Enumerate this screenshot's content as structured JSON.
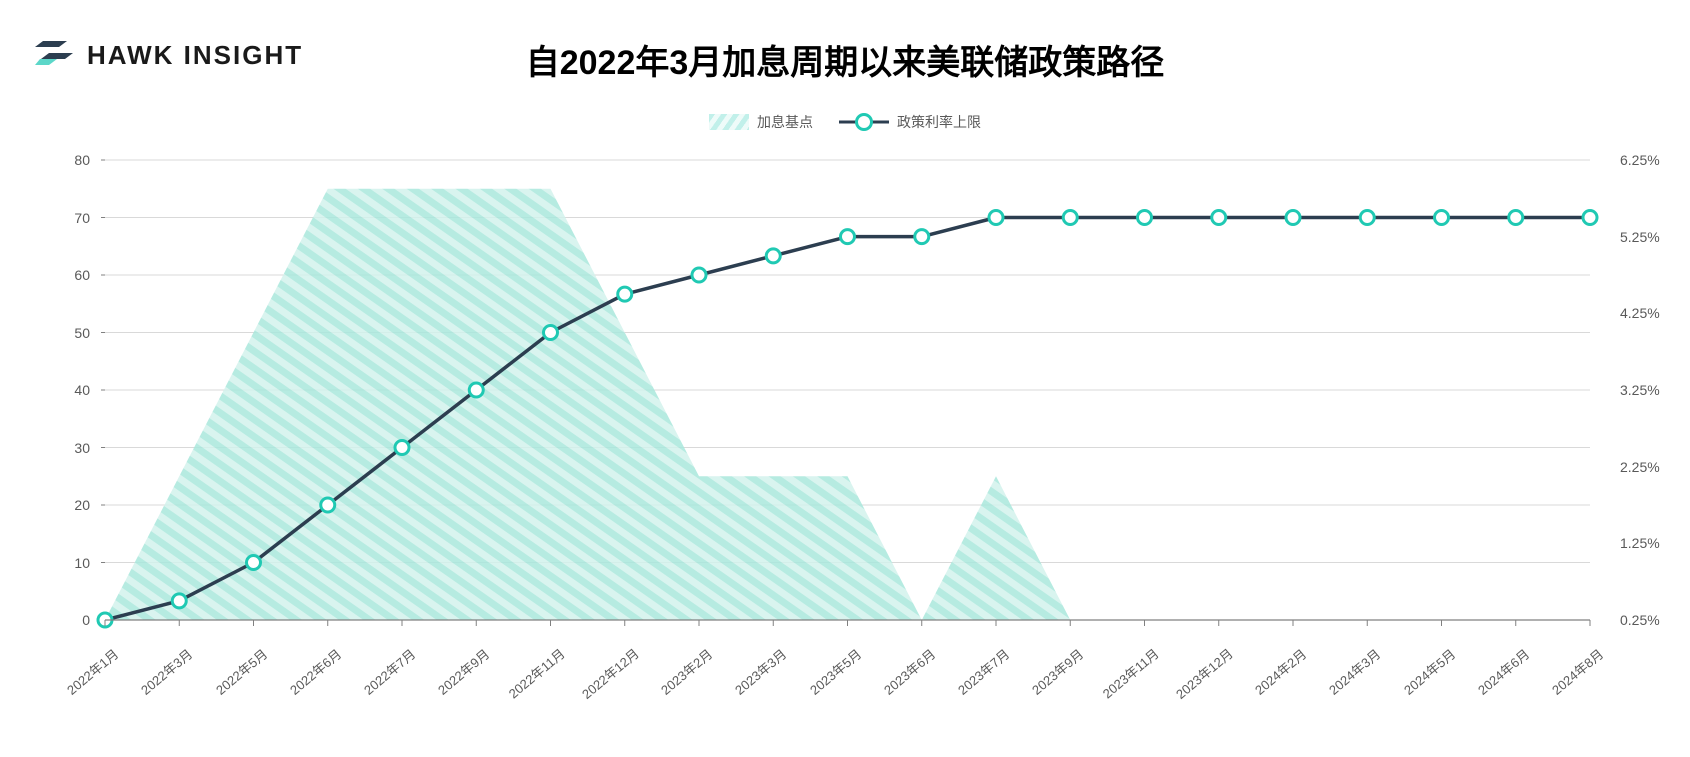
{
  "brand": {
    "name": "HAWK INSIGHT"
  },
  "chart": {
    "type": "combo-area-line",
    "title": "自2022年3月加息周期以来美联储政策路径",
    "title_fontsize": 34,
    "background_color": "#ffffff",
    "grid_color": "#d9d9d9",
    "axis_color": "#808080",
    "categories": [
      "2022年1月",
      "2022年3月",
      "2022年5月",
      "2022年6月",
      "2022年7月",
      "2022年9月",
      "2022年11月",
      "2022年12月",
      "2023年2月",
      "2023年3月",
      "2023年5月",
      "2023年6月",
      "2023年7月",
      "2023年9月",
      "2023年11月",
      "2023年12月",
      "2024年2月",
      "2024年3月",
      "2024年5月",
      "2024年6月",
      "2024年8月"
    ],
    "x_label_fontsize": 13,
    "x_label_rotation_deg": -40,
    "series_area": {
      "name": "加息基点",
      "values": [
        0,
        25,
        50,
        75,
        75,
        75,
        75,
        50,
        25,
        25,
        25,
        0,
        25,
        0,
        0,
        0,
        0,
        0,
        0,
        0,
        0
      ],
      "fill_pattern": "diagonal-hatch",
      "fill_color": "#b6ede4",
      "hatch_stroke": "#7fd9cc",
      "opacity": 0.85
    },
    "series_line": {
      "name": "政策利率上限",
      "values": [
        0.25,
        0.5,
        1.0,
        1.75,
        2.5,
        3.25,
        4.0,
        4.5,
        4.75,
        5.0,
        5.25,
        5.25,
        5.5,
        5.5,
        5.5,
        5.5,
        5.5,
        5.5,
        5.5,
        5.5,
        5.5
      ],
      "line_color": "#2c3e50",
      "line_width": 3.5,
      "marker_style": "circle",
      "marker_size": 14,
      "marker_fill": "#ffffff",
      "marker_stroke": "#20c9b3",
      "marker_stroke_width": 3
    },
    "y_left": {
      "min": 0,
      "max": 80,
      "step": 10,
      "ticks": [
        0,
        10,
        20,
        30,
        40,
        50,
        60,
        70,
        80
      ],
      "label_fontsize": 14
    },
    "y_right": {
      "min": 0.25,
      "max": 6.25,
      "step": 1.0,
      "ticks": [
        "0.25%",
        "1.25%",
        "2.25%",
        "3.25%",
        "4.25%",
        "5.25%",
        "6.25%"
      ],
      "tick_values": [
        0.25,
        1.25,
        2.25,
        3.25,
        4.25,
        5.25,
        6.25
      ],
      "label_fontsize": 14
    },
    "legend": {
      "position": "top-center",
      "items": [
        {
          "key": "area",
          "label": "加息基点"
        },
        {
          "key": "line",
          "label": "政策利率上限"
        }
      ]
    }
  }
}
